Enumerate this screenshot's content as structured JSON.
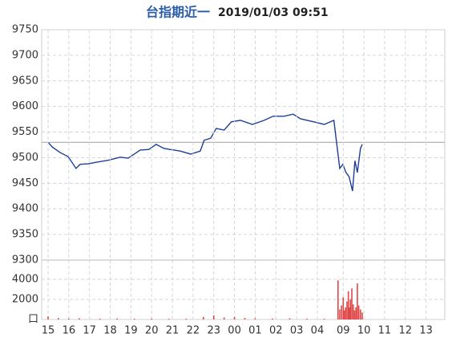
{
  "chart_data": [
    {
      "type": "line",
      "title": "台指期近一",
      "subtitle": "2019/01/03 09:51",
      "x": [
        0,
        12,
        35,
        58,
        81,
        93,
        116,
        139,
        174,
        209,
        232,
        267,
        292,
        313,
        336,
        353,
        383,
        413,
        441,
        452,
        471,
        487,
        510,
        531,
        557,
        592,
        626,
        652,
        684,
        710,
        731,
        770,
        800,
        828,
        835,
        845,
        854,
        863,
        872,
        882,
        889,
        896,
        905,
        910
      ],
      "series": [
        {
          "name": "price",
          "color": "#1d3f99",
          "values": [
            9530,
            9521,
            9510,
            9502,
            9479,
            9487,
            9488,
            9491,
            9495,
            9501,
            9499,
            9515,
            9516,
            9526,
            9518,
            9516,
            9513,
            9507,
            9513,
            9534,
            9538,
            9557,
            9554,
            9570,
            9573,
            9565,
            9573,
            9581,
            9581,
            9585,
            9576,
            9570,
            9565,
            9573,
            9534,
            9479,
            9487,
            9471,
            9463,
            9435,
            9494,
            9471,
            9518,
            9526
          ]
        }
      ],
      "reference_line": 9530,
      "reference_color": "#aaaaaa",
      "xlim": [
        0,
        1140
      ],
      "ylim": [
        9300,
        9750
      ],
      "yticks": [
        9300,
        9350,
        9400,
        9450,
        9500,
        9550,
        9600,
        9650,
        9700,
        9750
      ],
      "grid": true
    },
    {
      "type": "bar",
      "x": [
        0,
        30,
        60,
        90,
        150,
        200,
        250,
        300,
        350,
        400,
        450,
        480,
        510,
        540,
        570,
        600,
        650,
        700,
        750,
        800,
        840,
        845,
        850,
        855,
        858,
        862,
        866,
        870,
        873,
        876,
        880,
        884,
        888,
        892,
        896,
        900,
        905,
        910
      ],
      "series": [
        {
          "name": "volume",
          "color": "#e04848",
          "values": [
            300,
            150,
            100,
            120,
            80,
            100,
            80,
            90,
            70,
            80,
            250,
            400,
            200,
            250,
            150,
            120,
            100,
            120,
            90,
            80,
            3900,
            1000,
            1400,
            2200,
            900,
            1200,
            1800,
            2800,
            1200,
            2000,
            3100,
            1500,
            900,
            1200,
            3600,
            1400,
            1000,
            700
          ]
        }
      ],
      "xlim": [
        0,
        1140
      ],
      "ylim": [
        0,
        5920
      ],
      "yticks": [
        {
          "value": 0,
          "label": "口"
        },
        2000,
        4000
      ],
      "xticks": [
        {
          "value": 0,
          "label": "15"
        },
        {
          "value": 60,
          "label": "16"
        },
        {
          "value": 120,
          "label": "17"
        },
        {
          "value": 180,
          "label": "18"
        },
        {
          "value": 240,
          "label": "19"
        },
        {
          "value": 300,
          "label": "20"
        },
        {
          "value": 360,
          "label": "21"
        },
        {
          "value": 420,
          "label": "22"
        },
        {
          "value": 480,
          "label": "23"
        },
        {
          "value": 540,
          "label": "00"
        },
        {
          "value": 600,
          "label": "01"
        },
        {
          "value": 660,
          "label": "02"
        },
        {
          "value": 720,
          "label": "03"
        },
        {
          "value": 780,
          "label": "04"
        },
        {
          "value": 855,
          "label": "09"
        },
        {
          "value": 915,
          "label": "10"
        },
        {
          "value": 975,
          "label": "11"
        },
        {
          "value": 1035,
          "label": "12"
        },
        {
          "value": 1095,
          "label": "13"
        }
      ],
      "grid": true
    }
  ]
}
